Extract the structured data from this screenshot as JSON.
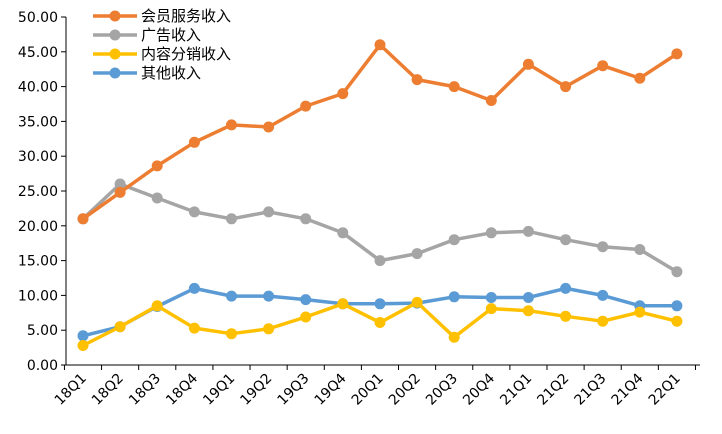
{
  "chart_data": {
    "type": "line",
    "title": "",
    "xlabel": "",
    "ylabel": "",
    "ylim": [
      0,
      50
    ],
    "y_ticks": [
      "0.00",
      "5.00",
      "10.00",
      "15.00",
      "20.00",
      "25.00",
      "30.00",
      "35.00",
      "40.00",
      "45.00",
      "50.00"
    ],
    "grid": false,
    "legend_position": "top-left",
    "categories": [
      "18Q1",
      "18Q2",
      "18Q3",
      "18Q4",
      "19Q1",
      "19Q2",
      "19Q3",
      "19Q4",
      "20Q1",
      "20Q2",
      "20Q3",
      "20Q4",
      "21Q1",
      "21Q2",
      "21Q3",
      "21Q4",
      "22Q1"
    ],
    "series": [
      {
        "name": "会员服务收入",
        "color": "#ED7D31",
        "values": [
          21.0,
          24.8,
          28.6,
          32.0,
          34.5,
          34.2,
          37.2,
          39.0,
          46.0,
          41.0,
          40.0,
          38.0,
          43.2,
          40.0,
          43.0,
          41.2,
          44.7
        ]
      },
      {
        "name": "广告收入",
        "color": "#A5A5A5",
        "values": [
          21.0,
          26.0,
          24.0,
          22.0,
          21.0,
          22.0,
          21.0,
          19.0,
          15.0,
          16.0,
          18.0,
          19.0,
          19.2,
          18.0,
          17.0,
          16.6,
          13.4
        ]
      },
      {
        "name": "内容分销收入",
        "color": "#FFC000",
        "values": [
          2.8,
          5.5,
          8.5,
          5.3,
          4.5,
          5.2,
          6.9,
          8.8,
          6.1,
          9.0,
          4.0,
          8.1,
          7.8,
          7.0,
          6.3,
          7.6,
          6.3
        ]
      },
      {
        "name": "其他收入",
        "color": "#5B9BD5",
        "values": [
          4.2,
          5.5,
          8.4,
          11.0,
          9.9,
          9.9,
          9.4,
          8.8,
          8.8,
          8.9,
          9.8,
          9.7,
          9.7,
          11.0,
          10.0,
          8.5,
          8.5
        ]
      }
    ]
  }
}
